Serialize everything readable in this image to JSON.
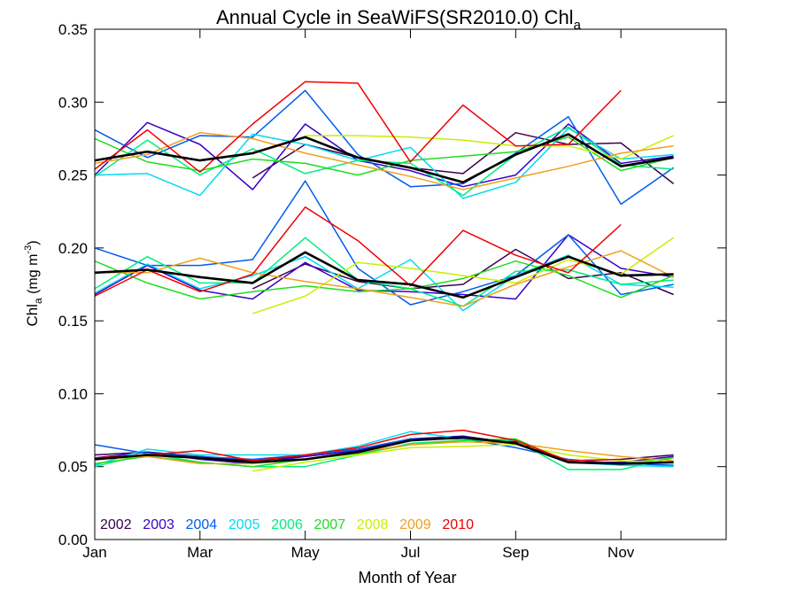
{
  "chart_data": {
    "type": "line",
    "title": "Annual Cycle in SeaWiFS(SR2010.0) Chl",
    "title_subscript": "a",
    "xlabel": "Month of Year",
    "ylabel": {
      "base": "Chl",
      "sub": "a",
      "units_prefix": " (mg m",
      "units_sup": "-3",
      "units_suffix": ")"
    },
    "xlim": [
      1,
      13
    ],
    "ylim": [
      0,
      0.35
    ],
    "x_ticks": [
      1,
      3,
      5,
      7,
      9,
      11
    ],
    "x_tick_labels": [
      "Jan",
      "Mar",
      "May",
      "Jul",
      "Sep",
      "Nov"
    ],
    "y_ticks": [
      0,
      0.05,
      0.1,
      0.15,
      0.2,
      0.25,
      0.3,
      0.35
    ],
    "y_tick_labels": [
      "0.00",
      "0.05",
      "0.10",
      "0.15",
      "0.20",
      "0.25",
      "0.30",
      "0.35"
    ],
    "grid": false,
    "legend_position": "bottom-left",
    "x": [
      1,
      2,
      3,
      4,
      5,
      6,
      7,
      8,
      9,
      10,
      11,
      12
    ],
    "series": [
      {
        "name": "2002",
        "color": "#3d0050",
        "high": [
          null,
          null,
          null,
          0.248,
          0.271,
          0.262,
          0.255,
          0.251,
          0.279,
          0.271,
          0.272,
          0.244
        ],
        "mid": [
          null,
          null,
          null,
          0.172,
          0.189,
          0.177,
          0.172,
          0.175,
          0.199,
          0.179,
          0.183,
          0.168
        ],
        "low": [
          0.058,
          0.06,
          0.057,
          0.054,
          0.057,
          0.061,
          0.069,
          0.07,
          0.067,
          0.054,
          0.055,
          0.058
        ]
      },
      {
        "name": "2003",
        "color": "#3a00c8",
        "high": [
          0.25,
          0.286,
          0.271,
          0.24,
          0.285,
          0.26,
          0.253,
          0.242,
          0.25,
          0.285,
          0.258,
          0.263
        ],
        "mid": [
          0.168,
          0.188,
          0.171,
          0.165,
          0.19,
          0.171,
          0.17,
          0.168,
          0.165,
          0.209,
          0.186,
          0.18
        ],
        "low": [
          0.056,
          0.06,
          0.055,
          0.052,
          0.057,
          0.061,
          0.069,
          0.071,
          0.066,
          0.053,
          0.053,
          0.057
        ]
      },
      {
        "name": "2004",
        "color": "#005cf0",
        "high": [
          0.281,
          0.262,
          0.277,
          0.276,
          0.308,
          0.264,
          0.242,
          0.244,
          0.265,
          0.29,
          0.23,
          0.255
        ],
        "mid": [
          0.2,
          0.188,
          0.188,
          0.192,
          0.246,
          0.186,
          0.161,
          0.17,
          0.181,
          0.209,
          0.168,
          0.175
        ],
        "low": [
          0.065,
          0.059,
          0.057,
          0.055,
          0.058,
          0.062,
          0.069,
          0.069,
          0.063,
          0.055,
          0.052,
          0.051
        ]
      },
      {
        "name": "2005",
        "color": "#00dcf0",
        "high": [
          0.25,
          0.251,
          0.236,
          0.278,
          0.271,
          0.26,
          0.269,
          0.234,
          0.245,
          0.282,
          0.261,
          0.264
        ],
        "mid": [
          0.169,
          0.189,
          0.172,
          0.181,
          0.194,
          0.172,
          0.192,
          0.157,
          0.181,
          0.195,
          0.175,
          0.173
        ],
        "low": [
          0.051,
          0.062,
          0.058,
          0.058,
          0.058,
          0.064,
          0.074,
          0.069,
          0.066,
          0.053,
          0.051,
          0.05
        ]
      },
      {
        "name": "2006",
        "color": "#00ee80",
        "high": [
          0.249,
          0.274,
          0.25,
          0.268,
          0.251,
          0.26,
          0.258,
          0.236,
          0.264,
          0.283,
          0.257,
          0.254
        ],
        "mid": [
          0.172,
          0.194,
          0.176,
          0.176,
          0.207,
          0.178,
          0.172,
          0.16,
          0.184,
          0.185,
          0.175,
          0.178
        ],
        "low": [
          0.05,
          0.059,
          0.053,
          0.05,
          0.05,
          0.058,
          0.066,
          0.068,
          0.068,
          0.048,
          0.048,
          0.056
        ]
      },
      {
        "name": "2007",
        "color": "#20dc20",
        "high": [
          0.275,
          0.259,
          0.253,
          0.261,
          0.258,
          0.25,
          0.26,
          0.263,
          0.266,
          0.276,
          0.253,
          0.262
        ],
        "mid": [
          0.191,
          0.176,
          0.165,
          0.17,
          0.174,
          0.17,
          0.172,
          0.179,
          0.191,
          0.181,
          0.166,
          0.181
        ],
        "low": [
          0.052,
          0.057,
          0.053,
          0.05,
          0.055,
          0.059,
          0.065,
          0.068,
          0.069,
          0.053,
          0.052,
          0.056
        ]
      },
      {
        "name": "2008",
        "color": "#c8f000",
        "high": [
          null,
          null,
          null,
          null,
          0.277,
          0.277,
          0.276,
          0.274,
          0.27,
          0.27,
          0.261,
          0.277
        ],
        "mid": [
          null,
          null,
          null,
          0.155,
          0.167,
          0.19,
          0.186,
          0.181,
          0.176,
          0.192,
          0.182,
          0.207
        ],
        "low": [
          null,
          null,
          null,
          0.047,
          0.053,
          0.058,
          0.063,
          0.064,
          0.065,
          0.058,
          0.054,
          0.053
        ]
      },
      {
        "name": "2009",
        "color": "#f0a020",
        "high": [
          0.258,
          0.264,
          0.279,
          0.275,
          0.265,
          0.257,
          0.249,
          0.24,
          0.248,
          0.256,
          0.265,
          0.27
        ],
        "mid": [
          0.183,
          0.183,
          0.193,
          0.183,
          0.177,
          0.172,
          0.166,
          0.16,
          0.175,
          0.187,
          0.198,
          0.18
        ],
        "low": [
          0.055,
          0.057,
          0.052,
          0.052,
          0.055,
          0.06,
          0.065,
          0.067,
          0.066,
          0.061,
          0.057,
          0.054
        ]
      },
      {
        "name": "2010",
        "color": "#f00000",
        "high": [
          0.254,
          0.281,
          0.252,
          0.285,
          0.314,
          0.313,
          0.259,
          0.298,
          0.27,
          0.271,
          0.308,
          null
        ],
        "mid": [
          0.167,
          0.185,
          0.17,
          0.182,
          0.228,
          0.205,
          0.174,
          0.212,
          0.195,
          0.183,
          0.216,
          null
        ],
        "low": [
          0.056,
          0.058,
          0.061,
          0.054,
          0.058,
          0.063,
          0.072,
          0.075,
          0.068,
          0.054,
          0.055,
          null
        ]
      },
      {
        "name": "",
        "color": "#000000",
        "high": [
          0.26,
          0.266,
          0.26,
          0.265,
          0.276,
          0.262,
          0.255,
          0.245,
          0.264,
          0.278,
          0.256,
          0.262
        ],
        "mid": [
          0.183,
          0.185,
          0.18,
          0.176,
          0.197,
          0.178,
          0.175,
          0.166,
          0.18,
          0.194,
          0.181,
          0.182
        ],
        "low": [
          0.055,
          0.058,
          0.056,
          0.053,
          0.055,
          0.06,
          0.068,
          0.07,
          0.066,
          0.053,
          0.052,
          0.053
        ]
      }
    ]
  }
}
